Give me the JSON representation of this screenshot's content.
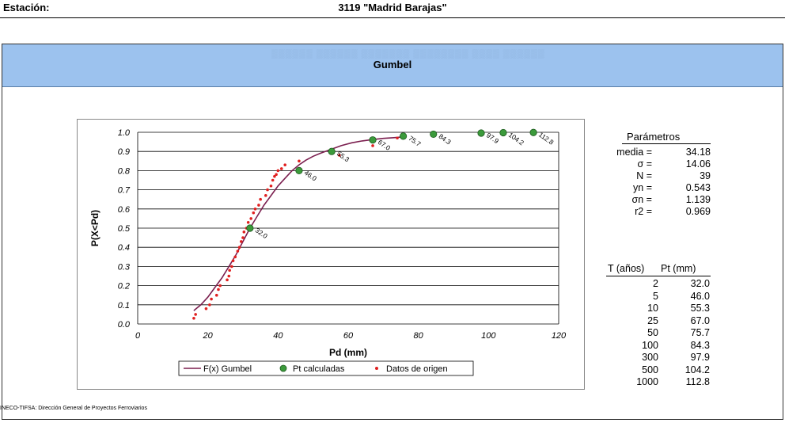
{
  "header": {
    "label": "Estación:",
    "station": "3119 \"Madrid Barajas\""
  },
  "banner": {
    "title": "Gumbel"
  },
  "footer": "INECO-TIFSA: Dirección General de Proyectos Ferroviarios",
  "colors": {
    "banner": "#9cc2ee",
    "curve": "#7b1f4f",
    "points": "#3b9a3b",
    "data": "#e02020"
  },
  "chart_data": {
    "type": "scatter",
    "xlabel": "Pd (mm)",
    "ylabel": "P(X<Pd)",
    "xlim": [
      0,
      120
    ],
    "ylim": [
      0,
      1.0
    ],
    "x_ticks": [
      0,
      20,
      40,
      60,
      80,
      100,
      120
    ],
    "y_ticks": [
      0.0,
      0.1,
      0.2,
      0.3,
      0.4,
      0.5,
      0.6,
      0.7,
      0.8,
      0.9,
      1.0
    ],
    "grid": "horizontal",
    "legend_position": "bottom",
    "series": [
      {
        "name": "F(x) Gumbel",
        "type": "line",
        "x": [
          16,
          18,
          20,
          22,
          24,
          26,
          28,
          30,
          32,
          34,
          36,
          38,
          40,
          42,
          44,
          46,
          48,
          50,
          52,
          55,
          58,
          61,
          64,
          67,
          70,
          73,
          75
        ],
        "y": [
          0.07,
          0.1,
          0.14,
          0.19,
          0.24,
          0.3,
          0.36,
          0.43,
          0.5,
          0.56,
          0.62,
          0.67,
          0.72,
          0.76,
          0.8,
          0.83,
          0.855,
          0.875,
          0.89,
          0.91,
          0.93,
          0.945,
          0.955,
          0.962,
          0.968,
          0.972,
          0.975
        ]
      },
      {
        "name": "Pt calculadas",
        "type": "points",
        "labels": [
          "32.0",
          "46.0",
          "55.3",
          "67.0",
          "75.7",
          "84.3",
          "97.9",
          "104.2",
          "112.8"
        ],
        "x": [
          32.0,
          46.0,
          55.3,
          67.0,
          75.7,
          84.3,
          97.9,
          104.2,
          112.8
        ],
        "y": [
          0.5,
          0.8,
          0.9,
          0.96,
          0.98,
          0.99,
          0.996,
          0.998,
          0.999
        ]
      },
      {
        "name": "Datos de origen",
        "type": "points",
        "x": [
          16.0,
          16.5,
          19.5,
          20.5,
          21.0,
          22.5,
          23.0,
          23.5,
          25.5,
          26.0,
          26.2,
          26.8,
          27.2,
          27.8,
          28.5,
          29.0,
          29.5,
          30.0,
          30.3,
          31.0,
          31.5,
          32.3,
          33.0,
          33.5,
          34.5,
          35.0,
          36.5,
          37.0,
          38.0,
          38.5,
          39.0,
          39.5,
          40.0,
          41.0,
          42.0,
          46.0,
          57.5,
          67.0,
          74.0
        ],
        "y": [
          0.03,
          0.05,
          0.08,
          0.1,
          0.13,
          0.15,
          0.18,
          0.2,
          0.23,
          0.25,
          0.28,
          0.3,
          0.33,
          0.35,
          0.38,
          0.4,
          0.43,
          0.45,
          0.48,
          0.5,
          0.53,
          0.55,
          0.58,
          0.6,
          0.62,
          0.65,
          0.67,
          0.7,
          0.72,
          0.75,
          0.77,
          0.78,
          0.8,
          0.81,
          0.83,
          0.85,
          0.88,
          0.93,
          0.97
        ]
      }
    ]
  },
  "parameters": {
    "title": "Parámetros",
    "rows": [
      {
        "key": "media =",
        "value": "34.18"
      },
      {
        "key": "σ =",
        "value": "14.06"
      },
      {
        "key": "N =",
        "value": "39"
      },
      {
        "key": "yn =",
        "value": "0.543"
      },
      {
        "key": "σn =",
        "value": "1.139"
      },
      {
        "key": "r2 =",
        "value": "0.969"
      }
    ]
  },
  "return_table": {
    "headers": [
      "T (años)",
      "Pt (mm)"
    ],
    "rows": [
      {
        "t": "2",
        "pt": "32.0"
      },
      {
        "t": "5",
        "pt": "46.0"
      },
      {
        "t": "10",
        "pt": "55.3"
      },
      {
        "t": "25",
        "pt": "67.0"
      },
      {
        "t": "50",
        "pt": "75.7"
      },
      {
        "t": "100",
        "pt": "84.3"
      },
      {
        "t": "300",
        "pt": "97.9"
      },
      {
        "t": "500",
        "pt": "104.2"
      },
      {
        "t": "1000",
        "pt": "112.8"
      }
    ]
  }
}
